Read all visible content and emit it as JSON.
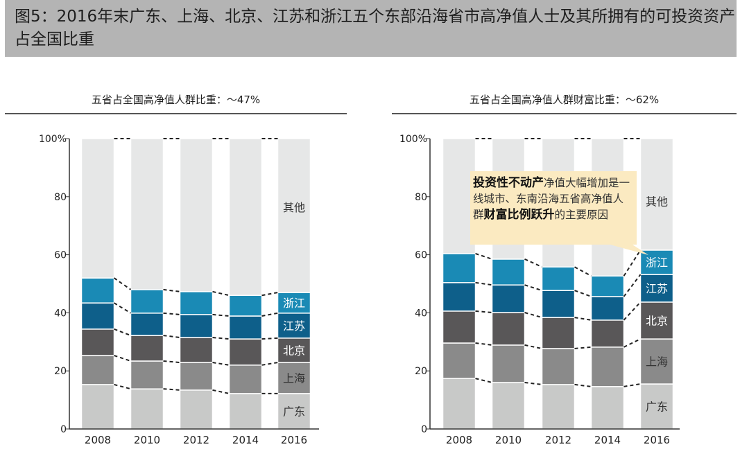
{
  "title": "图5：2016年末广东、上海、北京、江苏和浙江五个东部沿海省市高净值人士及其所拥有的可投资资产占全国比重",
  "colors": {
    "广东": "#c8c9c8",
    "上海": "#8a8a8a",
    "北京": "#595758",
    "江苏": "#0e5f8a",
    "浙江": "#1a8ab5",
    "其他": "#e6e7e7"
  },
  "chart_data": [
    {
      "type": "bar",
      "stacked": true,
      "subtitle": "五省占全国高净值人群比重：～47%",
      "categories": [
        "2008",
        "2010",
        "2012",
        "2014",
        "2016"
      ],
      "ylim": [
        0,
        100
      ],
      "yticks": [
        "0",
        "20",
        "40",
        "60",
        "80",
        "100%"
      ],
      "series": [
        {
          "name": "广东",
          "values": [
            15.3,
            13.8,
            13.4,
            12.2,
            12.2
          ]
        },
        {
          "name": "上海",
          "values": [
            10.0,
            9.6,
            9.5,
            9.8,
            10.7
          ]
        },
        {
          "name": "北京",
          "values": [
            9.1,
            8.8,
            8.6,
            9.0,
            8.4
          ]
        },
        {
          "name": "江苏",
          "values": [
            9.0,
            7.7,
            7.9,
            7.9,
            8.6
          ]
        },
        {
          "name": "浙江",
          "values": [
            8.6,
            8.1,
            7.9,
            7.1,
            7.1
          ]
        },
        {
          "name": "其他",
          "values": [
            48.0,
            52.0,
            52.7,
            54.0,
            53.0
          ]
        }
      ]
    },
    {
      "type": "bar",
      "stacked": true,
      "subtitle": "五省占全国高净值人群财富比重：～62%",
      "categories": [
        "2008",
        "2010",
        "2012",
        "2014",
        "2016"
      ],
      "ylim": [
        0,
        100
      ],
      "yticks": [
        "0",
        "20",
        "40",
        "60",
        "80",
        "100%"
      ],
      "series": [
        {
          "name": "广东",
          "values": [
            17.4,
            16.0,
            15.3,
            14.6,
            15.5
          ]
        },
        {
          "name": "上海",
          "values": [
            12.2,
            12.9,
            12.4,
            13.6,
            15.5
          ]
        },
        {
          "name": "北京",
          "values": [
            11.0,
            11.2,
            10.7,
            9.3,
            12.7
          ]
        },
        {
          "name": "江苏",
          "values": [
            9.8,
            9.5,
            9.3,
            8.1,
            9.5
          ]
        },
        {
          "name": "浙江",
          "values": [
            10.0,
            8.9,
            8.1,
            7.1,
            8.4
          ]
        },
        {
          "name": "其他",
          "values": [
            39.6,
            41.5,
            44.2,
            47.3,
            38.4
          ]
        }
      ],
      "annotation": {
        "bold1": "投资性不动产",
        "text1": "净值大幅增加是一线城市、东南沿海五省高净值人群",
        "bold2": "财富比例跃升",
        "text2": "的主要原因"
      }
    }
  ]
}
